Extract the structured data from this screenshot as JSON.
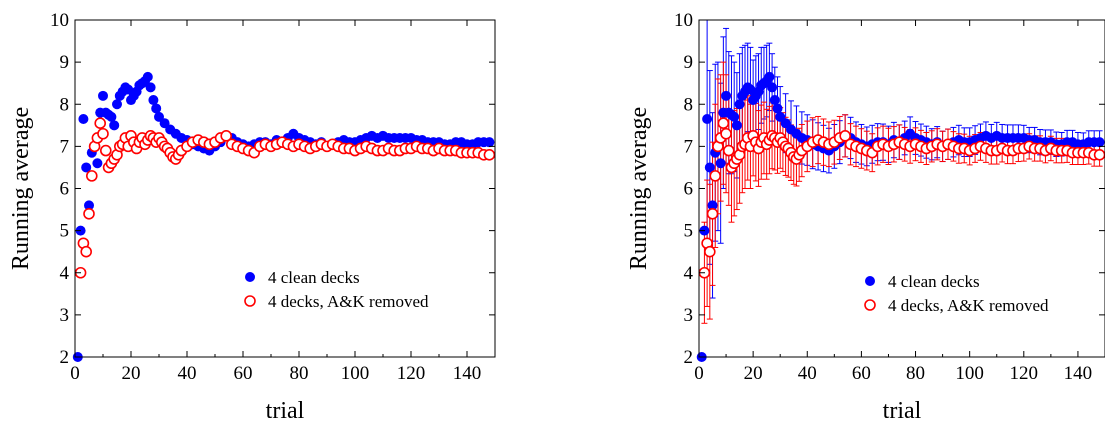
{
  "chart_data": [
    {
      "type": "scatter",
      "title": "",
      "xlabel": "trial",
      "ylabel": "Running average",
      "xlim": [
        0,
        150
      ],
      "ylim": [
        2,
        10
      ],
      "xticks": [
        0,
        20,
        40,
        60,
        80,
        100,
        120,
        140
      ],
      "yticks": [
        2,
        3,
        4,
        5,
        6,
        7,
        8,
        9,
        10
      ],
      "legend_position": "lower-right",
      "grid": false,
      "error_bars": false,
      "series": [
        {
          "name": "4 clean decks",
          "marker": "filled-circle",
          "color": "#0000ff",
          "x": [
            1,
            2,
            3,
            4,
            5,
            6,
            7,
            8,
            9,
            10,
            11,
            12,
            13,
            14,
            15,
            16,
            17,
            18,
            19,
            20,
            21,
            22,
            23,
            24,
            25,
            26,
            27,
            28,
            29,
            30,
            32,
            34,
            36,
            38,
            40,
            42,
            44,
            46,
            48,
            50,
            52,
            54,
            56,
            58,
            60,
            62,
            64,
            66,
            68,
            70,
            72,
            74,
            76,
            78,
            80,
            82,
            84,
            86,
            88,
            90,
            92,
            94,
            96,
            98,
            100,
            102,
            104,
            106,
            108,
            110,
            112,
            114,
            116,
            118,
            120,
            122,
            124,
            126,
            128,
            130,
            132,
            134,
            136,
            138,
            140,
            142,
            144,
            146,
            148
          ],
          "y": [
            2.0,
            5.0,
            7.65,
            6.5,
            5.6,
            6.85,
            7.0,
            6.6,
            7.8,
            8.2,
            7.8,
            7.75,
            7.7,
            7.5,
            8.0,
            8.2,
            8.3,
            8.4,
            8.35,
            8.1,
            8.2,
            8.3,
            8.45,
            8.5,
            8.55,
            8.65,
            8.4,
            8.1,
            7.9,
            7.7,
            7.55,
            7.4,
            7.3,
            7.2,
            7.15,
            7.05,
            7.0,
            6.95,
            6.9,
            7.0,
            7.1,
            7.25,
            7.2,
            7.1,
            7.05,
            7.0,
            7.05,
            7.1,
            7.1,
            7.05,
            7.15,
            7.1,
            7.2,
            7.3,
            7.2,
            7.15,
            7.1,
            7.05,
            7.1,
            7.0,
            7.05,
            7.1,
            7.15,
            7.1,
            7.1,
            7.15,
            7.2,
            7.25,
            7.2,
            7.25,
            7.2,
            7.2,
            7.2,
            7.2,
            7.2,
            7.15,
            7.15,
            7.1,
            7.1,
            7.1,
            7.05,
            7.05,
            7.1,
            7.1,
            7.05,
            7.05,
            7.1,
            7.1,
            7.1
          ]
        },
        {
          "name": "4 decks, A&K removed",
          "marker": "open-circle",
          "color": "#ff0000",
          "x": [
            2,
            3,
            4,
            5,
            6,
            7,
            8,
            9,
            10,
            11,
            12,
            13,
            14,
            15,
            16,
            17,
            18,
            19,
            20,
            21,
            22,
            23,
            24,
            25,
            26,
            27,
            28,
            29,
            30,
            31,
            32,
            33,
            34,
            35,
            36,
            37,
            38,
            40,
            42,
            44,
            46,
            48,
            50,
            52,
            54,
            56,
            58,
            60,
            62,
            64,
            66,
            68,
            70,
            72,
            74,
            76,
            78,
            80,
            82,
            84,
            86,
            88,
            90,
            92,
            94,
            96,
            98,
            100,
            102,
            104,
            106,
            108,
            110,
            112,
            114,
            116,
            118,
            120,
            122,
            124,
            126,
            128,
            130,
            132,
            134,
            136,
            138,
            140,
            142,
            144,
            146,
            148
          ],
          "y": [
            4.0,
            4.7,
            4.5,
            5.4,
            6.3,
            7.0,
            7.2,
            7.55,
            7.3,
            6.9,
            6.5,
            6.6,
            6.7,
            6.8,
            7.0,
            7.05,
            7.2,
            7.0,
            7.25,
            7.1,
            6.95,
            7.1,
            7.2,
            7.05,
            7.15,
            7.25,
            7.2,
            7.1,
            7.2,
            7.1,
            7.0,
            6.95,
            6.85,
            6.75,
            6.7,
            6.8,
            6.9,
            7.0,
            7.1,
            7.15,
            7.1,
            7.05,
            7.1,
            7.2,
            7.25,
            7.05,
            7.0,
            6.95,
            6.9,
            6.85,
            7.0,
            7.05,
            7.0,
            7.05,
            7.1,
            7.05,
            7.0,
            7.05,
            7.0,
            6.95,
            7.0,
            7.05,
            7.0,
            7.05,
            7.0,
            6.95,
            6.95,
            6.9,
            6.95,
            7.0,
            6.95,
            6.9,
            6.9,
            6.95,
            6.9,
            6.9,
            6.95,
            6.95,
            7.0,
            6.95,
            6.95,
            6.9,
            6.95,
            6.9,
            6.9,
            6.9,
            6.85,
            6.85,
            6.85,
            6.85,
            6.8,
            6.8
          ]
        }
      ]
    },
    {
      "type": "scatter",
      "title": "",
      "xlabel": "trial",
      "ylabel": "Running average",
      "xlim": [
        0,
        150
      ],
      "ylim": [
        2,
        10
      ],
      "xticks": [
        0,
        20,
        40,
        60,
        80,
        100,
        120,
        140
      ],
      "yticks": [
        2,
        3,
        4,
        5,
        6,
        7,
        8,
        9,
        10
      ],
      "legend_position": "lower-right",
      "grid": false,
      "error_bars": true,
      "series": [
        {
          "name": "4 clean decks",
          "marker": "filled-circle",
          "color": "#0000ff",
          "x": [
            1,
            2,
            3,
            4,
            5,
            6,
            7,
            8,
            9,
            10,
            11,
            12,
            13,
            14,
            15,
            16,
            17,
            18,
            19,
            20,
            21,
            22,
            23,
            24,
            25,
            26,
            27,
            28,
            29,
            30,
            32,
            34,
            36,
            38,
            40,
            42,
            44,
            46,
            48,
            50,
            52,
            54,
            56,
            58,
            60,
            62,
            64,
            66,
            68,
            70,
            72,
            74,
            76,
            78,
            80,
            82,
            84,
            86,
            88,
            90,
            92,
            94,
            96,
            98,
            100,
            102,
            104,
            106,
            108,
            110,
            112,
            114,
            116,
            118,
            120,
            122,
            124,
            126,
            128,
            130,
            132,
            134,
            136,
            138,
            140,
            142,
            144,
            146,
            148
          ],
          "y": [
            2.0,
            5.0,
            7.65,
            6.5,
            5.6,
            6.85,
            7.0,
            6.6,
            7.8,
            8.2,
            7.8,
            7.75,
            7.7,
            7.5,
            8.0,
            8.2,
            8.3,
            8.4,
            8.35,
            8.1,
            8.2,
            8.3,
            8.45,
            8.5,
            8.55,
            8.65,
            8.4,
            8.1,
            7.9,
            7.7,
            7.55,
            7.4,
            7.3,
            7.2,
            7.15,
            7.05,
            7.0,
            6.95,
            6.9,
            7.0,
            7.1,
            7.25,
            7.2,
            7.1,
            7.05,
            7.0,
            7.05,
            7.1,
            7.1,
            7.05,
            7.15,
            7.1,
            7.2,
            7.3,
            7.2,
            7.15,
            7.1,
            7.05,
            7.1,
            7.0,
            7.05,
            7.1,
            7.15,
            7.1,
            7.1,
            7.15,
            7.2,
            7.25,
            7.2,
            7.25,
            7.2,
            7.2,
            7.2,
            7.2,
            7.2,
            7.15,
            7.15,
            7.1,
            7.1,
            7.1,
            7.05,
            7.05,
            7.1,
            7.1,
            7.05,
            7.05,
            7.1,
            7.1,
            7.1
          ],
          "err": [
            0,
            0,
            3.0,
            2.3,
            2.2,
            2.1,
            2.0,
            1.9,
            1.8,
            1.6,
            1.45,
            1.4,
            1.3,
            1.25,
            1.2,
            1.15,
            1.1,
            1.05,
            1.0,
            0.95,
            0.95,
            0.9,
            0.9,
            0.85,
            0.85,
            0.8,
            0.8,
            0.78,
            0.75,
            0.72,
            0.7,
            0.68,
            0.66,
            0.62,
            0.6,
            0.58,
            0.56,
            0.55,
            0.53,
            0.52,
            0.51,
            0.5,
            0.49,
            0.48,
            0.47,
            0.46,
            0.45,
            0.44,
            0.43,
            0.43,
            0.42,
            0.41,
            0.4,
            0.4,
            0.39,
            0.38,
            0.38,
            0.37,
            0.37,
            0.36,
            0.36,
            0.35,
            0.35,
            0.34,
            0.34,
            0.34,
            0.33,
            0.33,
            0.32,
            0.32,
            0.32,
            0.31,
            0.31,
            0.31,
            0.3,
            0.3,
            0.3,
            0.3,
            0.29,
            0.29,
            0.29,
            0.28,
            0.28,
            0.28,
            0.28,
            0.27,
            0.27,
            0.27,
            0.27
          ]
        },
        {
          "name": "4 decks, A&K removed",
          "marker": "open-circle",
          "color": "#ff0000",
          "x": [
            2,
            3,
            4,
            5,
            6,
            7,
            8,
            9,
            10,
            11,
            12,
            13,
            14,
            15,
            16,
            17,
            18,
            19,
            20,
            21,
            22,
            23,
            24,
            25,
            26,
            27,
            28,
            29,
            30,
            31,
            32,
            33,
            34,
            35,
            36,
            37,
            38,
            40,
            42,
            44,
            46,
            48,
            50,
            52,
            54,
            56,
            58,
            60,
            62,
            64,
            66,
            68,
            70,
            72,
            74,
            76,
            78,
            80,
            82,
            84,
            86,
            88,
            90,
            92,
            94,
            96,
            98,
            100,
            102,
            104,
            106,
            108,
            110,
            112,
            114,
            116,
            118,
            120,
            122,
            124,
            126,
            128,
            130,
            132,
            134,
            136,
            138,
            140,
            142,
            144,
            146,
            148
          ],
          "y": [
            4.0,
            4.7,
            4.5,
            5.4,
            6.3,
            7.0,
            7.2,
            7.55,
            7.3,
            6.9,
            6.5,
            6.6,
            6.7,
            6.8,
            7.0,
            7.05,
            7.2,
            7.0,
            7.25,
            7.1,
            6.95,
            7.1,
            7.2,
            7.05,
            7.15,
            7.25,
            7.2,
            7.1,
            7.2,
            7.1,
            7.0,
            6.95,
            6.85,
            6.75,
            6.7,
            6.8,
            6.9,
            7.0,
            7.1,
            7.15,
            7.1,
            7.05,
            7.1,
            7.2,
            7.25,
            7.05,
            7.0,
            6.95,
            6.9,
            6.85,
            7.0,
            7.05,
            7.0,
            7.05,
            7.1,
            7.05,
            7.0,
            7.05,
            7.0,
            6.95,
            7.0,
            7.05,
            7.0,
            7.05,
            7.0,
            6.95,
            6.95,
            6.9,
            6.95,
            7.0,
            6.95,
            6.9,
            6.9,
            6.95,
            6.9,
            6.9,
            6.95,
            6.95,
            7.0,
            6.95,
            6.95,
            6.9,
            6.95,
            6.9,
            6.9,
            6.9,
            6.85,
            6.85,
            6.85,
            6.85,
            6.8,
            6.8
          ],
          "err": [
            1.2,
            1.5,
            1.6,
            1.7,
            1.7,
            1.6,
            1.5,
            1.45,
            1.4,
            1.3,
            1.3,
            1.25,
            1.2,
            1.15,
            1.1,
            1.05,
            1.0,
            1.0,
            0.95,
            0.92,
            0.9,
            0.88,
            0.85,
            0.83,
            0.8,
            0.78,
            0.76,
            0.74,
            0.72,
            0.7,
            0.69,
            0.68,
            0.66,
            0.65,
            0.64,
            0.63,
            0.62,
            0.6,
            0.58,
            0.56,
            0.55,
            0.53,
            0.52,
            0.51,
            0.5,
            0.49,
            0.48,
            0.47,
            0.46,
            0.45,
            0.44,
            0.43,
            0.43,
            0.42,
            0.41,
            0.4,
            0.4,
            0.39,
            0.38,
            0.38,
            0.37,
            0.37,
            0.36,
            0.36,
            0.35,
            0.35,
            0.34,
            0.34,
            0.33,
            0.33,
            0.33,
            0.32,
            0.32,
            0.32,
            0.31,
            0.31,
            0.31,
            0.3,
            0.3,
            0.3,
            0.3,
            0.29,
            0.29,
            0.29,
            0.29,
            0.28,
            0.28,
            0.28,
            0.28,
            0.27,
            0.27,
            0.27
          ]
        }
      ]
    }
  ]
}
